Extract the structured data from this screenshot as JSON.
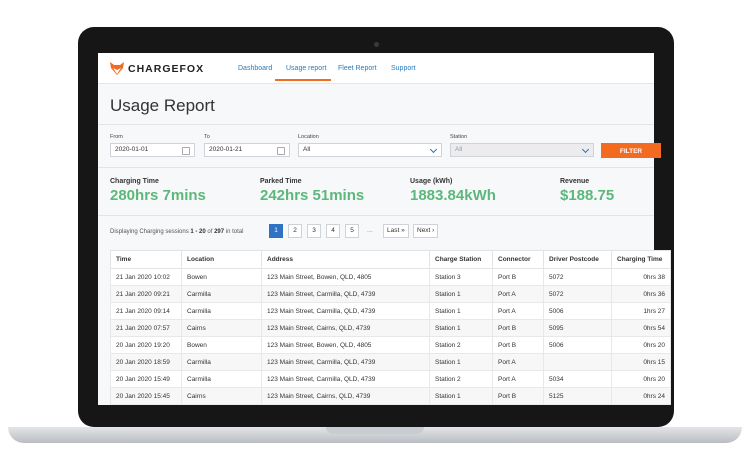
{
  "brand": {
    "name": "CHARGEFOX",
    "accent": "#f26b21"
  },
  "nav": {
    "items": [
      {
        "label": "Dashboard"
      },
      {
        "label": "Usage report",
        "active": true
      },
      {
        "label": "Fleet Report"
      },
      {
        "label": "Support"
      }
    ]
  },
  "page": {
    "title": "Usage Report"
  },
  "filters": {
    "from": {
      "label": "From",
      "value": "2020-01-01"
    },
    "to": {
      "label": "To",
      "value": "2020-01-21"
    },
    "location": {
      "label": "Location",
      "value": "All"
    },
    "station": {
      "label": "Station",
      "value": "All"
    },
    "button": "FILTER"
  },
  "stats": [
    {
      "label": "Charging Time",
      "value": "280hrs 7mins"
    },
    {
      "label": "Parked Time",
      "value": "242hrs 51mins"
    },
    {
      "label": "Usage (kWh)",
      "value": "1883.84kWh"
    },
    {
      "label": "Revenue",
      "value": "$188.75"
    }
  ],
  "pagination": {
    "prefix": "Displaying Charging sessions",
    "range": "1 - 20",
    "of": "of",
    "total": "297",
    "suffix": "in total",
    "pages": [
      "1",
      "2",
      "3",
      "4",
      "5"
    ],
    "ellipsis": "...",
    "last": "Last »",
    "next": "Next ›"
  },
  "table": {
    "columns": [
      "Time",
      "Location",
      "Address",
      "Charge Station",
      "Connector",
      "Driver Postcode",
      "Charging Time"
    ],
    "rows": [
      [
        "21 Jan 2020 10:02",
        "Bowen",
        "123 Main Street, Bowen, QLD, 4805",
        "Station 3",
        "Port B",
        "5072",
        "0hrs 38"
      ],
      [
        "21 Jan 2020 09:21",
        "Carmilla",
        "123 Main Street, Carmilla, QLD, 4739",
        "Station 1",
        "Port A",
        "5072",
        "0hrs 36"
      ],
      [
        "21 Jan 2020 09:14",
        "Carmilla",
        "123 Main Street, Carmilla, QLD, 4739",
        "Station 1",
        "Port A",
        "5006",
        "1hrs 27"
      ],
      [
        "21 Jan 2020 07:57",
        "Cairns",
        "123 Main Street, Cairns, QLD, 4739",
        "Station 1",
        "Port B",
        "5095",
        "0hrs 54"
      ],
      [
        "20 Jan 2020 19:20",
        "Bowen",
        "123 Main Street, Bowen, QLD, 4805",
        "Station 2",
        "Port B",
        "5006",
        "0hrs 20"
      ],
      [
        "20 Jan 2020 18:59",
        "Carmilla",
        "123 Main Street, Carmilla, QLD, 4739",
        "Station 1",
        "Port A",
        "",
        "0hrs 15"
      ],
      [
        "20 Jan 2020 15:49",
        "Carmilla",
        "123 Main Street, Carmilla, QLD, 4739",
        "Station 2",
        "Port A",
        "5034",
        "0hrs 20"
      ],
      [
        "20 Jan 2020 15:45",
        "Cairns",
        "123 Main Street, Cairns, QLD, 4739",
        "Station 1",
        "Port B",
        "5125",
        "0hrs 24"
      ]
    ]
  }
}
